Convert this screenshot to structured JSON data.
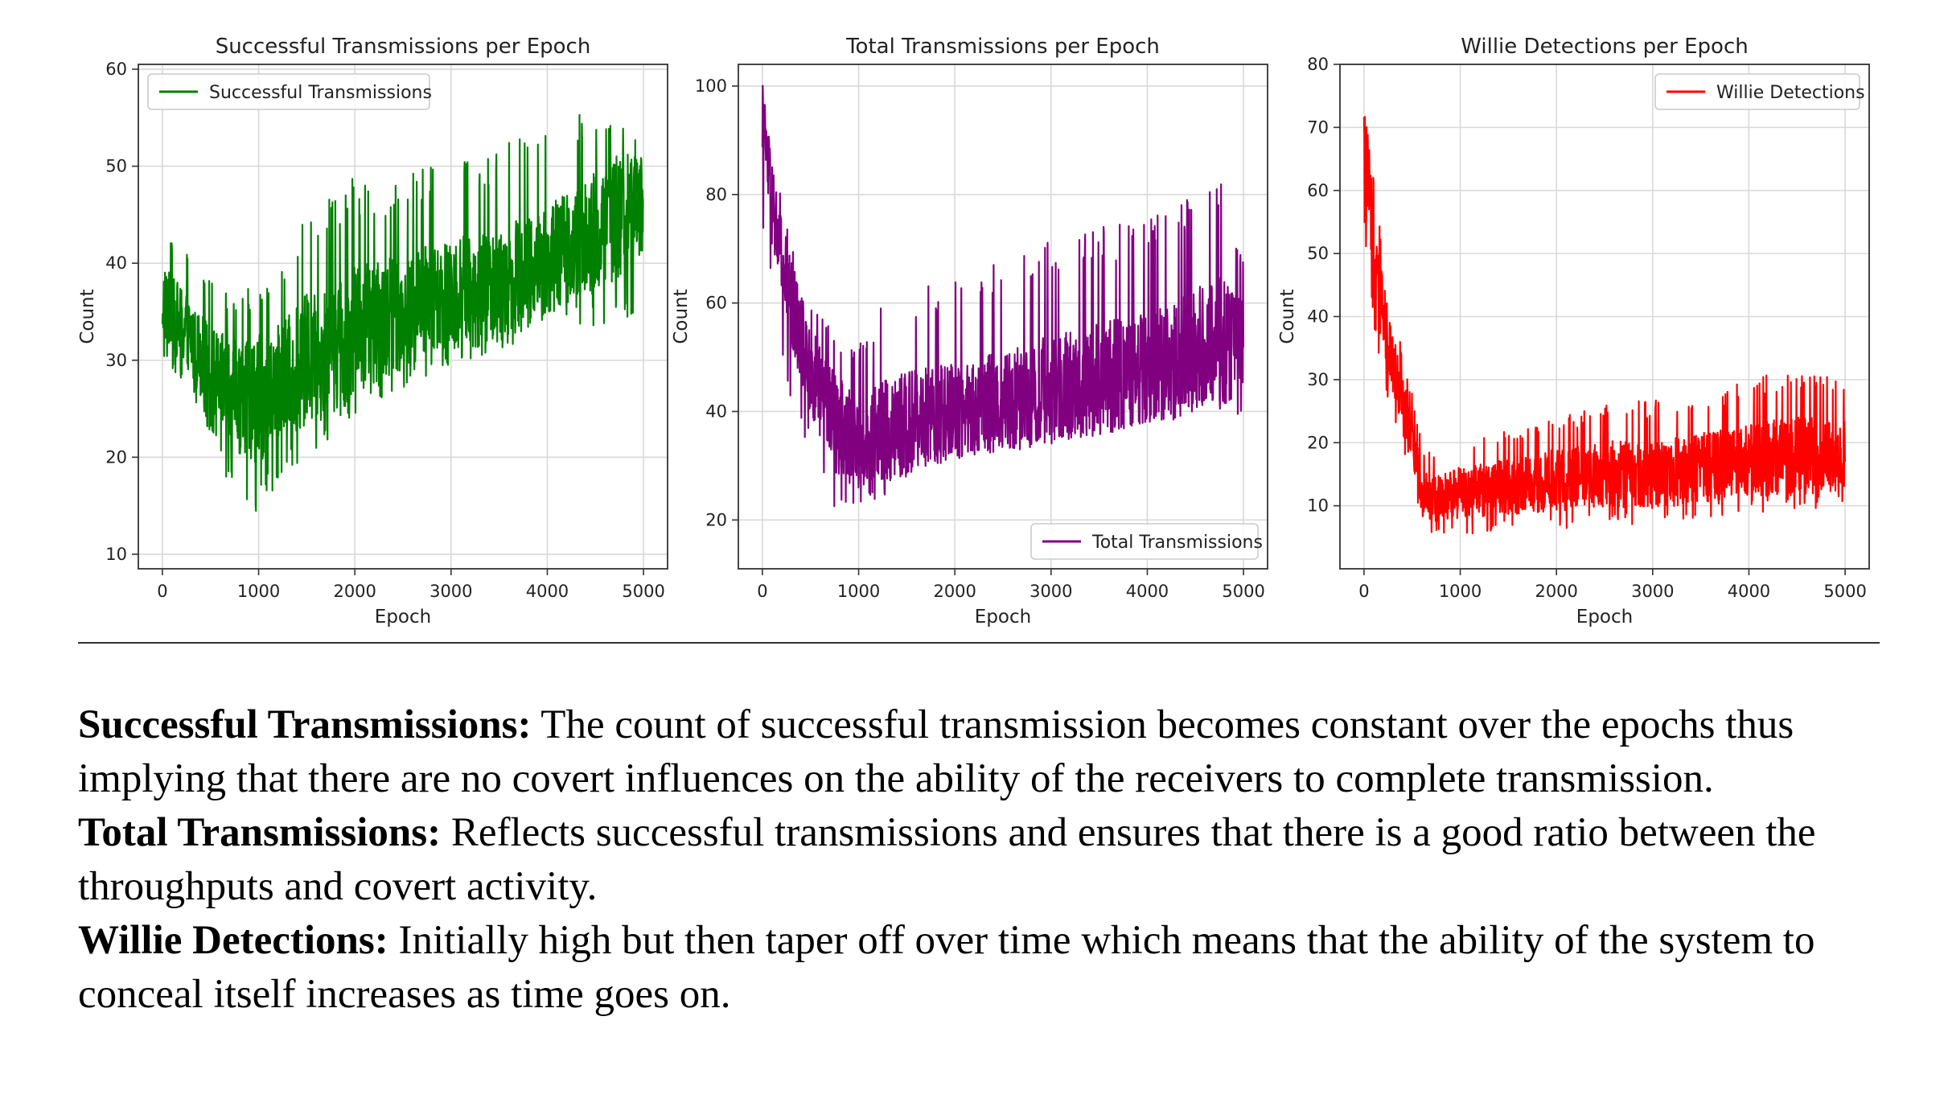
{
  "chart_data": [
    {
      "type": "line",
      "title": "Successful Transmissions per Epoch",
      "xlabel": "Epoch",
      "ylabel": "Count",
      "xlim": [
        -250,
        5250
      ],
      "ylim": [
        8.5,
        60.5
      ],
      "xticks": [
        0,
        1000,
        2000,
        3000,
        4000,
        5000
      ],
      "yticks": [
        10,
        20,
        30,
        40,
        50,
        60
      ],
      "grid": true,
      "legend": "top-left",
      "series": [
        {
          "name": "Successful Transmissions",
          "color": "#008000",
          "x": [
            0,
            250,
            500,
            750,
            1000,
            1250,
            1500,
            1750,
            2000,
            2250,
            2500,
            2750,
            3000,
            3250,
            3500,
            3750,
            4000,
            4250,
            4500,
            4750,
            5000
          ],
          "low": [
            30,
            27,
            22,
            15,
            14,
            18,
            20,
            22,
            24,
            26,
            27,
            28,
            29,
            30,
            30,
            32,
            33,
            34,
            33,
            34,
            34
          ],
          "mean": [
            36,
            33,
            29,
            26,
            26,
            28,
            30,
            31,
            33,
            34,
            35,
            36,
            37,
            37,
            38,
            39,
            40,
            42,
            43,
            45,
            46
          ],
          "high": [
            44,
            42,
            38,
            37,
            38,
            40,
            45,
            47,
            49,
            48,
            49,
            50,
            51,
            51,
            52,
            53,
            54,
            55,
            56,
            57,
            52
          ]
        }
      ]
    },
    {
      "type": "line",
      "title": "Total Transmissions per Epoch",
      "xlabel": "Epoch",
      "ylabel": "Count",
      "xlim": [
        -250,
        5250
      ],
      "ylim": [
        11,
        104
      ],
      "xticks": [
        0,
        1000,
        2000,
        3000,
        4000,
        5000
      ],
      "yticks": [
        20,
        40,
        60,
        80,
        100
      ],
      "grid": true,
      "legend": "bottom-right",
      "series": [
        {
          "name": "Total Transmissions",
          "color": "#800080",
          "x": [
            0,
            100,
            200,
            300,
            500,
            750,
            1000,
            1250,
            1500,
            1750,
            2000,
            2250,
            2500,
            2750,
            3000,
            3250,
            3500,
            3750,
            4000,
            4250,
            4500,
            4750,
            5000
          ],
          "low": [
            75,
            60,
            50,
            42,
            32,
            22,
            20,
            24,
            28,
            30,
            32,
            33,
            34,
            34,
            35,
            36,
            36,
            37,
            38,
            38,
            40,
            40,
            38
          ],
          "mean": [
            95,
            78,
            68,
            60,
            48,
            38,
            34,
            36,
            38,
            39,
            40,
            41,
            42,
            43,
            44,
            45,
            46,
            47,
            48,
            49,
            51,
            53,
            52
          ],
          "high": [
            98,
            88,
            80,
            72,
            62,
            55,
            52,
            60,
            62,
            64,
            64,
            66,
            68,
            70,
            72,
            72,
            74,
            75,
            76,
            78,
            82,
            85,
            68
          ]
        }
      ]
    },
    {
      "type": "line",
      "title": "Willie Detections per Epoch",
      "xlabel": "Epoch",
      "ylabel": "Count",
      "xlim": [
        -250,
        5250
      ],
      "ylim": [
        0,
        80
      ],
      "xticks": [
        0,
        1000,
        2000,
        3000,
        4000,
        5000
      ],
      "yticks": [
        10,
        20,
        30,
        40,
        50,
        60,
        70,
        80
      ],
      "grid": true,
      "legend": "top-right",
      "series": [
        {
          "name": "Willie Detections",
          "color": "#ff0000",
          "x": [
            0,
            50,
            100,
            200,
            300,
            400,
            500,
            600,
            700,
            1000,
            1500,
            2000,
            2500,
            3000,
            3500,
            4000,
            4500,
            5000
          ],
          "low": [
            55,
            45,
            38,
            30,
            24,
            18,
            14,
            6,
            5,
            5,
            6,
            6,
            7,
            7,
            8,
            9,
            9,
            10
          ],
          "mean": [
            68,
            60,
            50,
            40,
            33,
            26,
            20,
            12,
            11,
            12,
            13,
            14,
            15,
            15,
            16,
            17,
            18,
            18
          ],
          "high": [
            77,
            72,
            62,
            50,
            42,
            35,
            28,
            20,
            18,
            20,
            22,
            24,
            26,
            27,
            28,
            30,
            32,
            30
          ]
        }
      ]
    }
  ],
  "captions": [
    {
      "label": "Successful Transmissions:",
      "text": " The count of successful transmission becomes constant over the epochs thus implying that there are no covert influences on the ability of the receivers to complete transmission."
    },
    {
      "label": "Total Transmissions:",
      "text": " Reflects successful transmissions and ensures that there is a good ratio between the throughputs and covert activity."
    },
    {
      "label": "Willie Detections:",
      "text": " Initially high but then taper off over time which means that the ability of the system to conceal itself increases as time goes on."
    }
  ]
}
